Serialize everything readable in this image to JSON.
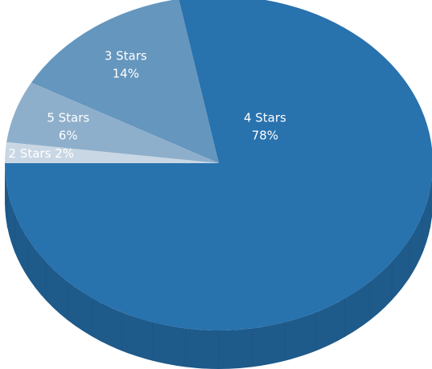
{
  "chart_data": {
    "type": "pie",
    "title": "",
    "three_d": true,
    "start_angle_deg": 180,
    "direction": "clockwise",
    "slices": [
      {
        "label": "4 Stars",
        "percent_label": "78%",
        "value": 78,
        "color": "#2872ae",
        "side_color": "#1e5a8a"
      },
      {
        "label": "3 Stars",
        "percent_label": "14%",
        "value": 14,
        "color": "#6596bd",
        "side_color": "#4c7291"
      },
      {
        "label": "5 Stars",
        "percent_label": "6%",
        "value": 6,
        "color": "#8eafcb",
        "side_color": "#6e8aa3"
      },
      {
        "label": "2 Stars",
        "percent_label": "2%",
        "value": 2,
        "color": "#c9d7e4",
        "side_color": "#a3b2c0"
      }
    ]
  }
}
